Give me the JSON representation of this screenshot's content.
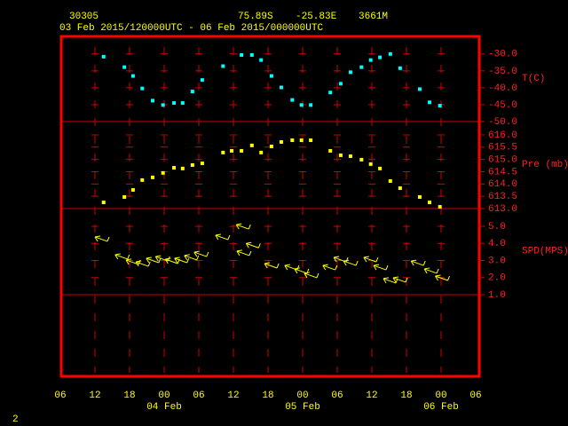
{
  "header": {
    "station": "30305",
    "lat": "75.89S",
    "lon": "-25.83E",
    "elev": "3661M",
    "period": "03 Feb 2015/120000UTC - 06 Feb 2015/000000UTC"
  },
  "x_axis": {
    "xlim": [
      6,
      78
    ],
    "xticks": [
      {
        "value": 6,
        "label": "06"
      },
      12,
      18,
      {
        "value": 24,
        "label": "00"
      },
      {
        "value": 30,
        "label": "06"
      },
      {
        "value": 36,
        "label": "12"
      },
      {
        "value": 42,
        "label": "18"
      },
      {
        "value": 48,
        "label": "00"
      },
      {
        "value": 54,
        "label": "06"
      },
      {
        "value": 60,
        "label": "12"
      },
      {
        "value": 66,
        "label": "18"
      },
      {
        "value": 72,
        "label": "00"
      },
      {
        "value": 78,
        "label": "06"
      }
    ],
    "date_labels": [
      {
        "value": 24,
        "label": "04 Feb"
      },
      {
        "value": 48,
        "label": "05 Feb"
      },
      {
        "value": 72,
        "label": "06 Feb"
      }
    ]
  },
  "chart_data": [
    {
      "type": "scatter",
      "ylim": [
        -50,
        -24.8
      ],
      "yticks": [
        {
          "value": -30,
          "label": "-30.0"
        },
        {
          "value": -35,
          "label": "-35.0"
        },
        {
          "value": -40,
          "label": "-40.0"
        },
        {
          "value": -45,
          "label": "-45.0"
        },
        {
          "value": -50,
          "label": "-50.0"
        }
      ],
      "series": [
        {
          "name": "T(C)",
          "color": "#00ffff",
          "x": [
            13.5,
            17.1,
            18.6,
            20.2,
            22.0,
            23.8,
            25.7,
            27.2,
            28.9,
            30.6,
            34.2,
            37.4,
            39.2,
            40.8,
            42.6,
            44.3,
            46.2,
            47.8,
            49.4,
            52.8,
            54.6,
            56.3,
            58.2,
            59.8,
            61.4,
            63.2,
            64.9,
            68.3,
            70.0,
            71.8
          ],
          "values": [
            -30.8,
            -33.9,
            -36.5,
            -40.2,
            -43.8,
            -45.1,
            -44.5,
            -44.5,
            -41.1,
            -37.7,
            -33.6,
            -30.3,
            -30.3,
            -31.8,
            -36.5,
            -39.9,
            -43.6,
            -45.1,
            -45.1,
            -41.4,
            -38.8,
            -35.4,
            -33.9,
            -31.8,
            -31.0,
            -30.0,
            -34.2,
            -40.4,
            -44.3,
            -45.3
          ]
        }
      ]
    },
    {
      "type": "scatter",
      "ylim": [
        613.0,
        616.54
      ],
      "yticks": [
        {
          "value": 616,
          "label": "616.0"
        },
        615.5,
        {
          "value": 615,
          "label": "615.0"
        },
        614.5,
        {
          "value": 614,
          "label": "614.0"
        },
        613.5,
        {
          "value": 613,
          "label": "613.0"
        }
      ],
      "series": [
        {
          "name": "Pre (mb)",
          "color": "#ffff00",
          "x": [
            13.5,
            17.1,
            18.6,
            20.2,
            22.0,
            23.8,
            25.7,
            27.2,
            28.9,
            30.6,
            34.2,
            35.7,
            37.4,
            39.2,
            40.8,
            42.6,
            44.3,
            46.2,
            47.8,
            49.4,
            52.8,
            54.6,
            56.3,
            58.2,
            59.8,
            61.4,
            63.2,
            64.9,
            68.3,
            70.0,
            71.8
          ],
          "values": [
            613.25,
            613.47,
            613.76,
            614.16,
            614.27,
            614.45,
            614.66,
            614.63,
            614.77,
            614.84,
            615.28,
            615.35,
            615.35,
            615.57,
            615.28,
            615.53,
            615.71,
            615.78,
            615.78,
            615.78,
            615.35,
            615.17,
            615.13,
            614.99,
            614.81,
            614.63,
            614.12,
            613.83,
            613.47,
            613.25,
            613.07
          ]
        }
      ]
    },
    {
      "type": "barb",
      "ylim": [
        1.0,
        6.04
      ],
      "yticks": [
        {
          "value": 5,
          "label": "5.0"
        },
        {
          "value": 4,
          "label": "4.0"
        },
        {
          "value": 3,
          "label": "3.0"
        },
        {
          "value": 2,
          "label": "2.0"
        },
        {
          "value": 1,
          "label": "1.0"
        }
      ],
      "series": [
        {
          "name": "SPD(MPS)",
          "color": "#ffff00",
          "x": [
            12.0,
            15.5,
            17.4,
            19.1,
            20.9,
            22.5,
            24.2,
            25.8,
            27.5,
            29.2,
            32.9,
            36.5,
            36.6,
            38.2,
            41.4,
            44.9,
            46.6,
            48.3,
            51.5,
            53.4,
            55.1,
            58.6,
            60.3,
            62.0,
            63.7,
            66.8,
            69.1,
            71.0
          ],
          "values": [
            4.38,
            3.34,
            3.03,
            2.92,
            3.13,
            3.23,
            3.08,
            3.13,
            3.29,
            3.49,
            4.48,
            5.1,
            3.55,
            4.0,
            2.82,
            2.71,
            2.51,
            2.25,
            2.71,
            3.18,
            2.97,
            3.18,
            2.71,
            1.94,
            1.99,
            2.97,
            2.51,
            2.09
          ]
        }
      ]
    }
  ],
  "footer": "2"
}
